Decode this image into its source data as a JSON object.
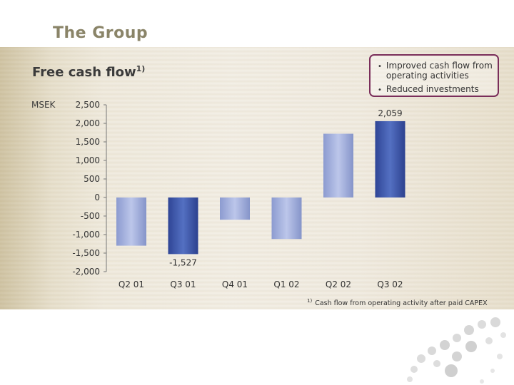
{
  "slide": {
    "title": "The Group",
    "subtitle": "Free cash flow",
    "subtitle_footnote_marker": "1)",
    "unit": "MSEK"
  },
  "bullets": [
    "Improved cash flow from operating activities",
    "Reduced investments"
  ],
  "footnote": {
    "marker": "1)",
    "text": "Cash flow from operating activity after paid CAPEX"
  },
  "colors": {
    "title": "#8a8468",
    "box_border": "#7a2e5a",
    "bar_dark": "#3f57a8",
    "bar_light": "#a8b3dc"
  },
  "chart_data": {
    "type": "bar",
    "categories": [
      "Q2 01",
      "Q3 01",
      "Q4 01",
      "Q1 02",
      "Q2 02",
      "Q3 02"
    ],
    "values": [
      -1300,
      -1527,
      -600,
      -1120,
      1720,
      2059
    ],
    "highlight": [
      false,
      true,
      false,
      false,
      false,
      true
    ],
    "data_labels": [
      {
        "index": 1,
        "text": "-1,527"
      },
      {
        "index": 5,
        "text": "2,059"
      }
    ],
    "ylim": [
      -2000,
      2500
    ],
    "yticks": [
      2500,
      2000,
      1500,
      1000,
      500,
      0,
      -500,
      -1000,
      -1500,
      -2000
    ],
    "ytick_labels": [
      "2,500",
      "2,000",
      "1,500",
      "1,000",
      "500",
      "0",
      "-500",
      "-1,000",
      "-1,500",
      "-2,000"
    ],
    "grid": false
  }
}
